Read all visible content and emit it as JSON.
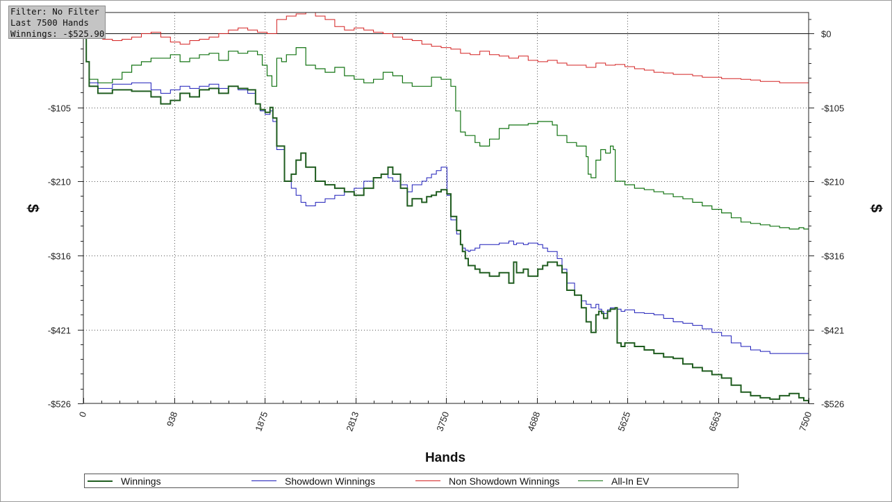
{
  "info_box": {
    "filter": "Filter: No Filter",
    "range": "Last 7500 Hands",
    "winnings": "Winnings: -$525.90"
  },
  "chart_data": {
    "type": "line",
    "title": "",
    "xlabel": "Hands",
    "ylabel": "$",
    "xlim": [
      0,
      7500
    ],
    "ylim": [
      -526,
      30
    ],
    "x_ticks": [
      "0",
      "938",
      "1875",
      "2813",
      "3750",
      "4688",
      "5625",
      "6563",
      "7500"
    ],
    "x_tick_values": [
      0,
      938,
      1875,
      2813,
      3750,
      4688,
      5625,
      6563,
      7500
    ],
    "y_ticks": [
      "$0",
      "-$105",
      "-$210",
      "-$316",
      "-$421",
      "-$526"
    ],
    "y_tick_values": [
      0,
      -105,
      -210,
      -316,
      -421,
      -526
    ],
    "grid": true,
    "legend_position": "bottom",
    "series": [
      {
        "name": "Winnings",
        "color": "#1f5c1f",
        "x": [
          0,
          30,
          60,
          150,
          300,
          500,
          700,
          800,
          900,
          1000,
          1100,
          1200,
          1300,
          1400,
          1500,
          1600,
          1700,
          1780,
          1830,
          1880,
          1930,
          1960,
          2000,
          2080,
          2150,
          2200,
          2250,
          2300,
          2400,
          2500,
          2600,
          2700,
          2800,
          2900,
          3000,
          3080,
          3150,
          3200,
          3280,
          3350,
          3400,
          3500,
          3550,
          3600,
          3650,
          3700,
          3760,
          3800,
          3860,
          3900,
          3920,
          3950,
          3980,
          4000,
          4050,
          4100,
          4200,
          4300,
          4400,
          4450,
          4480,
          4550,
          4600,
          4700,
          4750,
          4800,
          4900,
          4950,
          5000,
          5080,
          5150,
          5200,
          5250,
          5300,
          5330,
          5360,
          5380,
          5420,
          5450,
          5500,
          5520,
          5560,
          5600,
          5700,
          5800,
          5900,
          6000,
          6100,
          6200,
          6300,
          6400,
          6500,
          6600,
          6700,
          6800,
          6900,
          7000,
          7100,
          7200,
          7300,
          7400,
          7450,
          7500
        ],
        "y": [
          0,
          -40,
          -75,
          -85,
          -80,
          -82,
          -90,
          -100,
          -95,
          -85,
          -90,
          -80,
          -78,
          -85,
          -75,
          -78,
          -80,
          -100,
          -108,
          -112,
          -105,
          -120,
          -160,
          -210,
          -200,
          -180,
          -170,
          -190,
          -210,
          -215,
          -220,
          -225,
          -230,
          -220,
          -205,
          -200,
          -190,
          -200,
          -220,
          -245,
          -235,
          -240,
          -232,
          -230,
          -225,
          -222,
          -228,
          -260,
          -280,
          -300,
          -310,
          -320,
          -330,
          -330,
          -335,
          -340,
          -345,
          -340,
          -355,
          -325,
          -340,
          -335,
          -345,
          -335,
          -330,
          -325,
          -330,
          -340,
          -365,
          -372,
          -390,
          -410,
          -425,
          -400,
          -395,
          -398,
          -405,
          -395,
          -392,
          -390,
          -440,
          -445,
          -440,
          -445,
          -450,
          -455,
          -460,
          -462,
          -470,
          -475,
          -480,
          -485,
          -490,
          -500,
          -510,
          -515,
          -518,
          -520,
          -515,
          -512,
          -518,
          -522,
          -526
        ]
      },
      {
        "name": "Showdown Winnings",
        "color": "#1a1ab8",
        "x": [
          0,
          30,
          60,
          150,
          300,
          500,
          700,
          800,
          900,
          1000,
          1100,
          1200,
          1300,
          1400,
          1500,
          1600,
          1700,
          1780,
          1830,
          1880,
          1930,
          1960,
          2000,
          2080,
          2150,
          2200,
          2250,
          2300,
          2400,
          2500,
          2600,
          2700,
          2800,
          2900,
          3000,
          3080,
          3150,
          3200,
          3280,
          3350,
          3400,
          3500,
          3550,
          3600,
          3650,
          3700,
          3760,
          3800,
          3860,
          3900,
          3920,
          3950,
          3980,
          4000,
          4050,
          4100,
          4200,
          4300,
          4400,
          4450,
          4480,
          4550,
          4600,
          4700,
          4750,
          4800,
          4900,
          4950,
          5000,
          5080,
          5150,
          5200,
          5250,
          5300,
          5330,
          5360,
          5380,
          5420,
          5450,
          5500,
          5520,
          5560,
          5600,
          5700,
          5800,
          5900,
          6000,
          6100,
          6200,
          6300,
          6400,
          6500,
          6600,
          6700,
          6800,
          6900,
          7000,
          7100,
          7200,
          7300,
          7400,
          7450,
          7500
        ],
        "y": [
          0,
          -40,
          -70,
          -78,
          -72,
          -70,
          -80,
          -85,
          -80,
          -75,
          -78,
          -75,
          -72,
          -78,
          -75,
          -80,
          -85,
          -100,
          -110,
          -115,
          -110,
          -125,
          -165,
          -210,
          -220,
          -230,
          -240,
          -245,
          -240,
          -235,
          -230,
          -225,
          -220,
          -210,
          -205,
          -200,
          -205,
          -210,
          -215,
          -225,
          -215,
          -210,
          -205,
          -200,
          -195,
          -190,
          -230,
          -265,
          -285,
          -300,
          -305,
          -308,
          -310,
          -308,
          -305,
          -300,
          -300,
          -298,
          -295,
          -300,
          -298,
          -300,
          -298,
          -300,
          -305,
          -310,
          -320,
          -335,
          -355,
          -372,
          -380,
          -385,
          -390,
          -385,
          -392,
          -395,
          -398,
          -393,
          -390,
          -390,
          -392,
          -395,
          -393,
          -397,
          -398,
          -400,
          -405,
          -410,
          -412,
          -415,
          -420,
          -425,
          -430,
          -440,
          -445,
          -450,
          -452,
          -455,
          -455,
          -455,
          -455,
          -455,
          -455
        ]
      },
      {
        "name": "Non Showdown Winnings",
        "color": "#d42020",
        "x": [
          0,
          100,
          200,
          300,
          400,
          500,
          600,
          700,
          800,
          900,
          1000,
          1100,
          1200,
          1300,
          1400,
          1500,
          1600,
          1700,
          1800,
          1900,
          2000,
          2100,
          2200,
          2300,
          2400,
          2500,
          2600,
          2700,
          2800,
          2900,
          3000,
          3100,
          3200,
          3300,
          3400,
          3500,
          3600,
          3700,
          3800,
          3900,
          4000,
          4100,
          4200,
          4300,
          4400,
          4500,
          4600,
          4700,
          4800,
          4900,
          5000,
          5100,
          5200,
          5300,
          5400,
          5500,
          5600,
          5700,
          5800,
          5900,
          6000,
          6100,
          6200,
          6300,
          6400,
          6500,
          6600,
          6700,
          6800,
          6900,
          7000,
          7100,
          7200,
          7300,
          7400,
          7500
        ],
        "y": [
          0,
          -5,
          -8,
          -10,
          -8,
          -5,
          0,
          2,
          -5,
          -12,
          -15,
          -10,
          -8,
          -5,
          0,
          5,
          8,
          5,
          2,
          0,
          20,
          25,
          28,
          30,
          25,
          20,
          10,
          5,
          8,
          5,
          2,
          0,
          -5,
          -8,
          -10,
          -15,
          -18,
          -20,
          -22,
          -28,
          -30,
          -25,
          -30,
          -32,
          -35,
          -32,
          -38,
          -40,
          -38,
          -42,
          -45,
          -45,
          -48,
          -42,
          -45,
          -44,
          -47,
          -50,
          -52,
          -55,
          -56,
          -58,
          -58,
          -60,
          -62,
          -62,
          -64,
          -64,
          -65,
          -66,
          -68,
          -68,
          -70,
          -70,
          -70,
          -74
        ]
      },
      {
        "name": "All-In EV",
        "color": "#127312",
        "x": [
          0,
          30,
          60,
          150,
          300,
          400,
          500,
          600,
          700,
          800,
          900,
          1000,
          1100,
          1200,
          1300,
          1400,
          1500,
          1600,
          1700,
          1800,
          1850,
          1900,
          1950,
          2000,
          2050,
          2100,
          2200,
          2300,
          2400,
          2500,
          2600,
          2700,
          2800,
          2900,
          3000,
          3100,
          3200,
          3300,
          3400,
          3500,
          3600,
          3700,
          3800,
          3850,
          3900,
          3950,
          4000,
          4050,
          4100,
          4200,
          4300,
          4400,
          4500,
          4600,
          4700,
          4800,
          4850,
          4900,
          5000,
          5100,
          5200,
          5220,
          5250,
          5300,
          5350,
          5400,
          5450,
          5480,
          5500,
          5600,
          5700,
          5800,
          5900,
          6000,
          6100,
          6200,
          6300,
          6400,
          6500,
          6600,
          6700,
          6800,
          6900,
          7000,
          7100,
          7200,
          7300,
          7400,
          7450,
          7500
        ],
        "y": [
          0,
          -40,
          -65,
          -70,
          -65,
          -55,
          -45,
          -40,
          -35,
          -35,
          -30,
          -40,
          -35,
          -30,
          -28,
          -38,
          -25,
          -28,
          -25,
          -30,
          -45,
          -60,
          -75,
          -35,
          -40,
          -30,
          -20,
          -45,
          -50,
          -55,
          -48,
          -60,
          -65,
          -70,
          -65,
          -55,
          -60,
          -70,
          -75,
          -75,
          -62,
          -65,
          -75,
          -110,
          -140,
          -145,
          -145,
          -155,
          -160,
          -150,
          -135,
          -130,
          -130,
          -128,
          -125,
          -125,
          -130,
          -145,
          -155,
          -160,
          -175,
          -200,
          -205,
          -180,
          -165,
          -170,
          -160,
          -165,
          -210,
          -215,
          -220,
          -222,
          -225,
          -228,
          -232,
          -235,
          -240,
          -245,
          -250,
          -255,
          -262,
          -268,
          -270,
          -272,
          -274,
          -276,
          -278,
          -276,
          -278,
          -278
        ]
      }
    ]
  }
}
